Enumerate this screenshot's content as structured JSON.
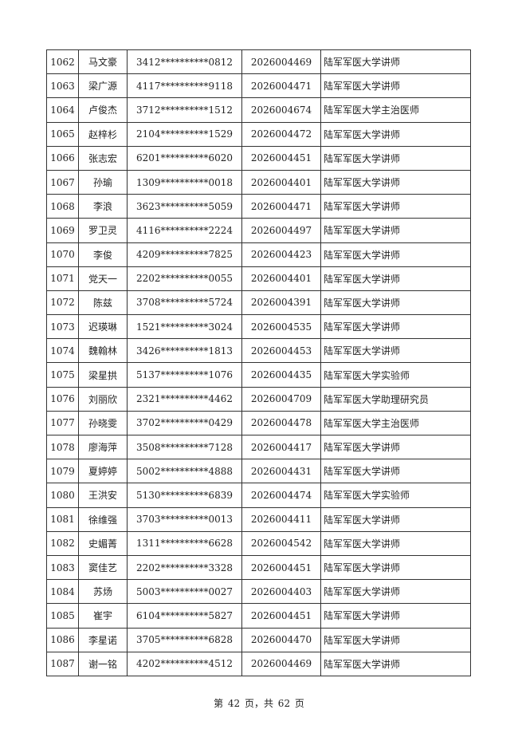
{
  "rows": [
    [
      "1062",
      "马文豪",
      "3412**********0812",
      "2026004469",
      "陆军军医大学讲师"
    ],
    [
      "1063",
      "梁广源",
      "4117**********9118",
      "2026004471",
      "陆军军医大学讲师"
    ],
    [
      "1064",
      "卢俊杰",
      "3712**********1512",
      "2026004674",
      "陆军军医大学主治医师"
    ],
    [
      "1065",
      "赵梓杉",
      "2104**********1529",
      "2026004472",
      "陆军军医大学讲师"
    ],
    [
      "1066",
      "张志宏",
      "6201**********6020",
      "2026004451",
      "陆军军医大学讲师"
    ],
    [
      "1067",
      "孙瑜",
      "1309**********0018",
      "2026004401",
      "陆军军医大学讲师"
    ],
    [
      "1068",
      "李浪",
      "3623**********5059",
      "2026004471",
      "陆军军医大学讲师"
    ],
    [
      "1069",
      "罗卫灵",
      "4116**********2224",
      "2026004497",
      "陆军军医大学讲师"
    ],
    [
      "1070",
      "李俊",
      "4209**********7825",
      "2026004423",
      "陆军军医大学讲师"
    ],
    [
      "1071",
      "党天一",
      "2202**********0055",
      "2026004401",
      "陆军军医大学讲师"
    ],
    [
      "1072",
      "陈兹",
      "3708**********5724",
      "2026004391",
      "陆军军医大学讲师"
    ],
    [
      "1073",
      "迟瑛琳",
      "1521**********3024",
      "2026004535",
      "陆军军医大学讲师"
    ],
    [
      "1074",
      "魏翰林",
      "3426**********1813",
      "2026004453",
      "陆军军医大学讲师"
    ],
    [
      "1075",
      "梁星拱",
      "5137**********1076",
      "2026004435",
      "陆军军医大学实验师"
    ],
    [
      "1076",
      "刘丽欣",
      "2321**********4462",
      "2026004709",
      "陆军军医大学助理研究员"
    ],
    [
      "1077",
      "孙晓雯",
      "3702**********0429",
      "2026004478",
      "陆军军医大学主治医师"
    ],
    [
      "1078",
      "廖海萍",
      "3508**********7128",
      "2026004417",
      "陆军军医大学讲师"
    ],
    [
      "1079",
      "夏婷婷",
      "5002**********4888",
      "2026004431",
      "陆军军医大学讲师"
    ],
    [
      "1080",
      "王洪安",
      "5130**********6839",
      "2026004474",
      "陆军军医大学实验师"
    ],
    [
      "1081",
      "徐维强",
      "3703**********0013",
      "2026004411",
      "陆军军医大学讲师"
    ],
    [
      "1082",
      "史媚菁",
      "1311**********6628",
      "2026004542",
      "陆军军医大学讲师"
    ],
    [
      "1083",
      "窦佳艺",
      "2202**********3328",
      "2026004451",
      "陆军军医大学讲师"
    ],
    [
      "1084",
      "苏炀",
      "5003**********0027",
      "2026004403",
      "陆军军医大学讲师"
    ],
    [
      "1085",
      "崔宇",
      "6104**********5827",
      "2026004451",
      "陆军军医大学讲师"
    ],
    [
      "1086",
      "李星诺",
      "3705**********6828",
      "2026004470",
      "陆军军医大学讲师"
    ],
    [
      "1087",
      "谢一铭",
      "4202**********4512",
      "2026004469",
      "陆军军医大学讲师"
    ]
  ],
  "footer": "第 42 页，共 62 页"
}
